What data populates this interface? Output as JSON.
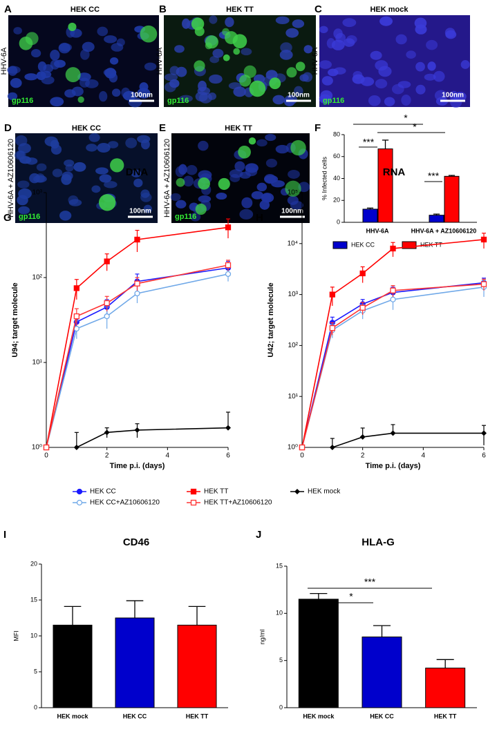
{
  "images": [
    {
      "panel": "A",
      "title": "HEK CC",
      "side_label": "HHV-6A",
      "stain": "gp116",
      "scale": "100nm"
    },
    {
      "panel": "B",
      "title": "HEK TT",
      "side_label": "HHV-6A",
      "stain": "gp116",
      "scale": "100nm"
    },
    {
      "panel": "C",
      "title": "HEK mock",
      "side_label": "HHV-6A",
      "stain": "gp116",
      "scale": "100nm"
    },
    {
      "panel": "D",
      "title": "HEK CC",
      "side_label": "HHV-6A + AZ10606120",
      "stain": "gp116",
      "scale": "100nm"
    },
    {
      "panel": "E",
      "title": "HEK TT",
      "side_label": "HHV-6A + AZ10606120",
      "stain": "gp116",
      "scale": "100nm"
    }
  ],
  "chart_data": [
    {
      "panel": "F",
      "type": "bar",
      "y_label": "% Infected cells",
      "categories": [
        "HHV-6A",
        "HHV-6A + AZ10606120"
      ],
      "series": [
        {
          "name": "HEK CC",
          "color": "#0000cc",
          "values": [
            12,
            6.5
          ],
          "errors": [
            1,
            1
          ]
        },
        {
          "name": "HEK TT",
          "color": "#ff0000",
          "values": [
            67,
            42
          ],
          "errors": [
            8,
            0.8
          ]
        }
      ],
      "ylim": [
        0,
        80
      ],
      "yticks": [
        0,
        20,
        40,
        60,
        80
      ],
      "annotations": [
        "*",
        "*",
        "***",
        "***"
      ]
    },
    {
      "panel": "G",
      "type": "line",
      "title": "DNA",
      "x_label": "Time p.i. (days)",
      "y_label": "U94; target molecule",
      "log_y": true,
      "x": [
        0,
        1,
        2,
        3,
        6
      ],
      "xlim": [
        0,
        6
      ],
      "xticks": [
        0,
        2,
        4,
        6
      ],
      "ylim": [
        1,
        1000
      ],
      "yticks": [
        {
          "value": 1,
          "label": "10⁰"
        },
        {
          "value": 10,
          "label": "10¹"
        },
        {
          "value": 100,
          "label": "10²"
        },
        {
          "value": 1000,
          "label": "10³"
        }
      ],
      "series": [
        {
          "name": "HEK CC",
          "color": "#1a1aff",
          "marker": "circle",
          "values": [
            1,
            30,
            45,
            90,
            130
          ],
          "errors": [
            0,
            6,
            10,
            20,
            25
          ]
        },
        {
          "name": "HEK CC+AZ10606120",
          "color": "#6fa8e8",
          "marker": "circle-open",
          "values": [
            1,
            25,
            35,
            65,
            110
          ],
          "errors": [
            0,
            6,
            10,
            15,
            20
          ]
        },
        {
          "name": "HEK TT",
          "color": "#ff0000",
          "marker": "square",
          "values": [
            1,
            75,
            155,
            280,
            390
          ],
          "errors": [
            0,
            20,
            35,
            80,
            100
          ]
        },
        {
          "name": "HEK TT+AZ10606120",
          "color": "#ff3333",
          "marker": "square-open",
          "values": [
            1,
            35,
            50,
            85,
            140
          ],
          "errors": [
            0,
            8,
            10,
            15,
            20
          ]
        },
        {
          "name": "HEK mock",
          "color": "#000000",
          "marker": "diamond",
          "values": [
            null,
            1,
            1.5,
            1.6,
            1.7
          ],
          "errors": [
            null,
            0.5,
            0.2,
            0.3,
            0.9
          ]
        }
      ]
    },
    {
      "panel": "H",
      "type": "line",
      "title": "RNA",
      "x_label": "Time p.i. (days)",
      "y_label": "U42; target molecule",
      "log_y": true,
      "x": [
        0,
        1,
        2,
        3,
        6
      ],
      "xlim": [
        0,
        6
      ],
      "xticks": [
        0,
        2,
        4,
        6
      ],
      "ylim": [
        1,
        100000
      ],
      "yticks": [
        {
          "value": 1,
          "label": "10⁰"
        },
        {
          "value": 10,
          "label": "10¹"
        },
        {
          "value": 100,
          "label": "10²"
        },
        {
          "value": 1000,
          "label": "10³"
        },
        {
          "value": 10000,
          "label": "10⁴"
        },
        {
          "value": 100000,
          "label": "10⁵"
        }
      ],
      "series": [
        {
          "color": "#1a1aff",
          "marker": "circle",
          "values": [
            1,
            280,
            650,
            1100,
            1700
          ],
          "errors": [
            0,
            80,
            150,
            300,
            400
          ]
        },
        {
          "color": "#6fa8e8",
          "marker": "circle-open",
          "values": [
            1,
            200,
            480,
            800,
            1400
          ],
          "errors": [
            0,
            60,
            150,
            300,
            500
          ]
        },
        {
          "color": "#ff0000",
          "marker": "square",
          "values": [
            1,
            1000,
            2600,
            8000,
            12000
          ],
          "errors": [
            0,
            400,
            900,
            2500,
            4000
          ]
        },
        {
          "color": "#ff3333",
          "marker": "square-open",
          "values": [
            1,
            220,
            550,
            1200,
            1600
          ],
          "errors": [
            0,
            60,
            150,
            300,
            400
          ]
        },
        {
          "color": "#000000",
          "marker": "diamond",
          "values": [
            null,
            1,
            1.6,
            1.9,
            1.9
          ],
          "errors": [
            null,
            0.5,
            0.8,
            0.9,
            0.8
          ]
        }
      ]
    },
    {
      "panel": "I",
      "type": "bar",
      "title": "CD46",
      "y_label": "MFI",
      "categories": [
        "HEK mock",
        "HEK CC",
        "HEK TT"
      ],
      "values": [
        11.5,
        12.5,
        11.5
      ],
      "errors": [
        2.6,
        2.4,
        2.6
      ],
      "colors": [
        "#000000",
        "#0000cc",
        "#ff0000"
      ],
      "ylim": [
        0,
        20
      ],
      "yticks": [
        0,
        5,
        10,
        15,
        20
      ]
    },
    {
      "panel": "J",
      "type": "bar",
      "title": "HLA-G",
      "y_label": "ng/ml",
      "categories": [
        "HEK mock",
        "HEK CC",
        "HEK TT"
      ],
      "values": [
        11.5,
        7.5,
        4.2
      ],
      "errors": [
        0.6,
        1.2,
        0.9
      ],
      "colors": [
        "#000000",
        "#0000cc",
        "#ff0000"
      ],
      "ylim": [
        0,
        15
      ],
      "yticks": [
        0,
        5,
        10,
        15
      ],
      "annotations": [
        "*",
        "***"
      ]
    }
  ]
}
